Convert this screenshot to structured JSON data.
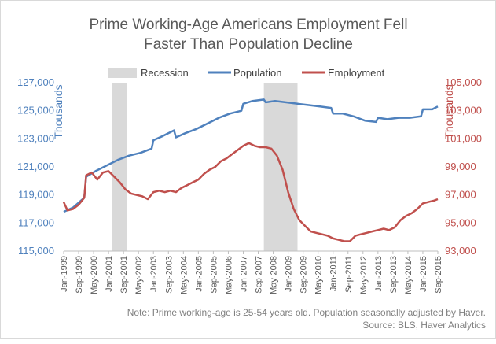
{
  "chart_data": {
    "type": "line",
    "title_line1": "Prime Working-Age Americans Employment Fell",
    "title_line2": "Faster Than Population Decline",
    "legend": {
      "recession": "Recession",
      "population": "Population",
      "employment": "Employment"
    },
    "left_axis": {
      "label": "Thousands",
      "ylim": [
        115000,
        127000
      ],
      "ticks": [
        "115,000",
        "117,000",
        "119,000",
        "121,000",
        "123,000",
        "125,000",
        "127,000"
      ]
    },
    "right_axis": {
      "label": "Thousands",
      "ylim": [
        93000,
        105000
      ],
      "ticks": [
        "93,000",
        "95,000",
        "97,000",
        "99,000",
        "101,000",
        "103,000",
        "105,000"
      ]
    },
    "x_tick_labels": [
      "Jan-1999",
      "Sep-1999",
      "May-2000",
      "Jan-2001",
      "Sep-2001",
      "May-2002",
      "Jan-2003",
      "Sep-2003",
      "May-2004",
      "Jan-2005",
      "Sep-2005",
      "May-2006",
      "Jan-2007",
      "Sep-2007",
      "May-2008",
      "Jan-2009",
      "Sep-2009",
      "May-2010",
      "Jan-2011",
      "Sep-2011",
      "May-2012",
      "Jan-2013",
      "Sep-2013",
      "May-2014",
      "Jan-2015",
      "Sep-2015"
    ],
    "x_range": [
      "Jan-1999",
      "Sep-2015"
    ],
    "recessions": [
      {
        "start": "Mar-2001",
        "end": "Nov-2001"
      },
      {
        "start": "Dec-2007",
        "end": "Jun-2009"
      }
    ],
    "colors": {
      "population": "#4f81bd",
      "employment": "#c0504d",
      "recession": "#d9d9d9"
    },
    "series": [
      {
        "name": "Population",
        "axis": "left",
        "points": [
          [
            "Jan-1999",
            117800
          ],
          [
            "Jun-1999",
            118100
          ],
          [
            "Dec-1999",
            118800
          ],
          [
            "Jan-2000",
            120300
          ],
          [
            "Jun-2000",
            120700
          ],
          [
            "Dec-2000",
            121100
          ],
          [
            "Jun-2001",
            121500
          ],
          [
            "Dec-2001",
            121800
          ],
          [
            "Jun-2002",
            122000
          ],
          [
            "Dec-2002",
            122300
          ],
          [
            "Jan-2003",
            122900
          ],
          [
            "Jun-2003",
            123200
          ],
          [
            "Dec-2003",
            123600
          ],
          [
            "Jan-2004",
            123100
          ],
          [
            "Jun-2004",
            123400
          ],
          [
            "Dec-2004",
            123700
          ],
          [
            "Jun-2005",
            124100
          ],
          [
            "Dec-2005",
            124500
          ],
          [
            "Jun-2006",
            124800
          ],
          [
            "Dec-2006",
            125000
          ],
          [
            "Jan-2007",
            125500
          ],
          [
            "Jun-2007",
            125700
          ],
          [
            "Dec-2007",
            125800
          ],
          [
            "Jan-2008",
            125600
          ],
          [
            "Jun-2008",
            125700
          ],
          [
            "Dec-2008",
            125600
          ],
          [
            "Jun-2009",
            125500
          ],
          [
            "Dec-2009",
            125400
          ],
          [
            "Jun-2010",
            125300
          ],
          [
            "Dec-2010",
            125200
          ],
          [
            "Jan-2011",
            124800
          ],
          [
            "Jun-2011",
            124800
          ],
          [
            "Dec-2011",
            124600
          ],
          [
            "Jun-2012",
            124300
          ],
          [
            "Dec-2012",
            124200
          ],
          [
            "Jan-2013",
            124500
          ],
          [
            "Jun-2013",
            124400
          ],
          [
            "Dec-2013",
            124500
          ],
          [
            "Jun-2014",
            124500
          ],
          [
            "Dec-2014",
            124600
          ],
          [
            "Jan-2015",
            125100
          ],
          [
            "Jun-2015",
            125100
          ],
          [
            "Sep-2015",
            125300
          ]
        ]
      },
      {
        "name": "Employment",
        "axis": "right",
        "points": [
          [
            "Jan-1999",
            96500
          ],
          [
            "Mar-1999",
            95900
          ],
          [
            "Jun-1999",
            96000
          ],
          [
            "Sep-1999",
            96300
          ],
          [
            "Dec-1999",
            96800
          ],
          [
            "Jan-2000",
            98400
          ],
          [
            "Apr-2000",
            98600
          ],
          [
            "Jul-2000",
            98100
          ],
          [
            "Oct-2000",
            98600
          ],
          [
            "Jan-2001",
            98700
          ],
          [
            "Apr-2001",
            98300
          ],
          [
            "Jul-2001",
            97900
          ],
          [
            "Oct-2001",
            97400
          ],
          [
            "Jan-2002",
            97100
          ],
          [
            "Apr-2002",
            97000
          ],
          [
            "Jul-2002",
            96900
          ],
          [
            "Oct-2002",
            96700
          ],
          [
            "Jan-2003",
            97200
          ],
          [
            "Apr-2003",
            97300
          ],
          [
            "Jul-2003",
            97200
          ],
          [
            "Oct-2003",
            97300
          ],
          [
            "Jan-2004",
            97200
          ],
          [
            "Apr-2004",
            97500
          ],
          [
            "Jul-2004",
            97700
          ],
          [
            "Oct-2004",
            97900
          ],
          [
            "Jan-2005",
            98100
          ],
          [
            "Apr-2005",
            98500
          ],
          [
            "Jul-2005",
            98800
          ],
          [
            "Oct-2005",
            99000
          ],
          [
            "Jan-2006",
            99400
          ],
          [
            "Apr-2006",
            99600
          ],
          [
            "Jul-2006",
            99900
          ],
          [
            "Oct-2006",
            100200
          ],
          [
            "Jan-2007",
            100500
          ],
          [
            "Apr-2007",
            100700
          ],
          [
            "Jul-2007",
            100500
          ],
          [
            "Oct-2007",
            100400
          ],
          [
            "Jan-2008",
            100400
          ],
          [
            "Apr-2008",
            100300
          ],
          [
            "Jul-2008",
            99800
          ],
          [
            "Oct-2008",
            98800
          ],
          [
            "Jan-2009",
            97200
          ],
          [
            "Apr-2009",
            96000
          ],
          [
            "Jul-2009",
            95200
          ],
          [
            "Oct-2009",
            94800
          ],
          [
            "Jan-2010",
            94400
          ],
          [
            "Apr-2010",
            94300
          ],
          [
            "Jul-2010",
            94200
          ],
          [
            "Oct-2010",
            94100
          ],
          [
            "Jan-2011",
            93900
          ],
          [
            "Apr-2011",
            93800
          ],
          [
            "Jul-2011",
            93700
          ],
          [
            "Oct-2011",
            93700
          ],
          [
            "Jan-2012",
            94100
          ],
          [
            "Apr-2012",
            94200
          ],
          [
            "Jul-2012",
            94300
          ],
          [
            "Oct-2012",
            94400
          ],
          [
            "Jan-2013",
            94500
          ],
          [
            "Apr-2013",
            94600
          ],
          [
            "Jul-2013",
            94500
          ],
          [
            "Oct-2013",
            94700
          ],
          [
            "Jan-2014",
            95200
          ],
          [
            "Apr-2014",
            95500
          ],
          [
            "Jul-2014",
            95700
          ],
          [
            "Oct-2014",
            96000
          ],
          [
            "Jan-2015",
            96400
          ],
          [
            "Apr-2015",
            96500
          ],
          [
            "Jul-2015",
            96600
          ],
          [
            "Sep-2015",
            96700
          ]
        ]
      }
    ],
    "note_line1": "Note: Prime working-age is 25-54 years old. Population seasonally adjusted by Haver.",
    "note_line2": "Source: BLS, Haver Analytics"
  }
}
